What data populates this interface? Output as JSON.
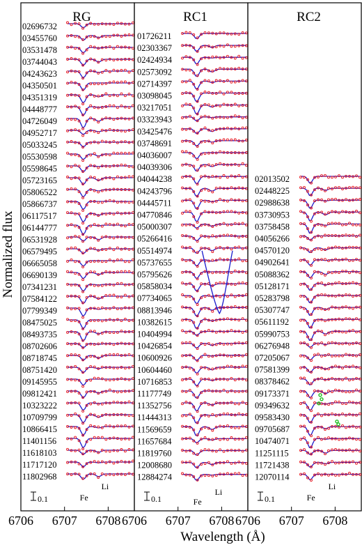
{
  "chart_data": {
    "type": "line",
    "ylabel": "Normalized flux",
    "xlabel": "Wavelength (Å)",
    "xlim": [
      6706,
      6708.6
    ],
    "xticks": [
      "6706",
      "6707",
      "6708"
    ],
    "scale_bar_label": "0.1",
    "line_labels": {
      "fe": "Fe",
      "li": "Li"
    },
    "colors": {
      "observed": "#e8141c",
      "model": "#1a1acc",
      "flagged": "#20c020"
    },
    "panels": [
      {
        "title": "RG",
        "stars": [
          "02696732",
          "03455760",
          "03531478",
          "03744043",
          "04243623",
          "04350501",
          "04351319",
          "04448777",
          "04726049",
          "04952717",
          "05033245",
          "05530598",
          "05598645",
          "05723165",
          "05806522",
          "05866737",
          "06117517",
          "06144777",
          "06531928",
          "06579495",
          "06665058",
          "06690139",
          "07341231",
          "07584122",
          "07799349",
          "08475025",
          "08493735",
          "08702606",
          "08718745",
          "08751420",
          "09145955",
          "09812421",
          "10323222",
          "10709799",
          "10866415",
          "11401156",
          "11618103",
          "11717120",
          "11802968"
        ]
      },
      {
        "title": "RC1",
        "stars": [
          "01726211",
          "02303367",
          "02424934",
          "02573092",
          "02714397",
          "03098045",
          "03217051",
          "03323943",
          "03425476",
          "03748691",
          "04036007",
          "04039306",
          "04044238",
          "04243796",
          "04445711",
          "04770846",
          "05000307",
          "05266416",
          "05514974",
          "05737655",
          "05795626",
          "05858034",
          "07734065",
          "08813946",
          "10382615",
          "10404994",
          "10426854",
          "10600926",
          "10604460",
          "10716853",
          "11177749",
          "11352756",
          "11444313",
          "11569659",
          "11657684",
          "11819760",
          "12008680",
          "12884274"
        ]
      },
      {
        "title": "RC2",
        "stars": [
          "02013502",
          "02448225",
          "02988638",
          "03730953",
          "03758458",
          "04056266",
          "04570120",
          "04902641",
          "05088362",
          "05128171",
          "05283798",
          "05307747",
          "05611192",
          "05990753",
          "06276948",
          "07205067",
          "07581399",
          "08378462",
          "09173371",
          "09349632",
          "09583430",
          "09705687",
          "10474071",
          "11251115",
          "11721438",
          "12070114"
        ]
      }
    ]
  }
}
